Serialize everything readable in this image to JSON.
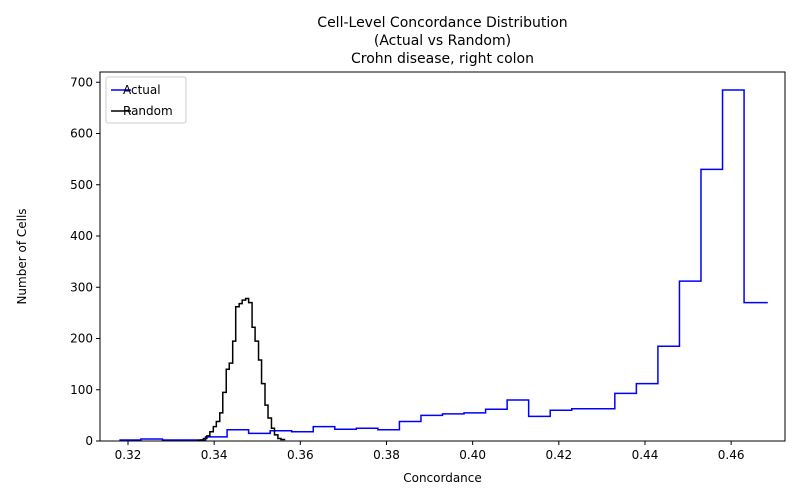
{
  "chart_data": {
    "type": "step",
    "title": [
      "Cell-Level Concordance Distribution",
      "(Actual vs Random)",
      "Crohn disease, right colon"
    ],
    "xlabel": "Concordance",
    "ylabel": "Number of Cells",
    "xlim": [
      0.3135,
      0.4725
    ],
    "ylim": [
      0,
      720
    ],
    "xticks": [
      0.32,
      0.34,
      0.36,
      0.38,
      0.4,
      0.42,
      0.44,
      0.46
    ],
    "xtick_labels": [
      "0.32",
      "0.34",
      "0.36",
      "0.38",
      "0.40",
      "0.42",
      "0.44",
      "0.46"
    ],
    "yticks": [
      0,
      100,
      200,
      300,
      400,
      500,
      600,
      700
    ],
    "ytick_labels": [
      "0",
      "100",
      "200",
      "300",
      "400",
      "500",
      "600",
      "700"
    ],
    "grid": false,
    "legend": "upper-left",
    "series": [
      {
        "name": "Actual",
        "color": "#0000ff",
        "x": [
          0.318,
          0.323,
          0.328,
          0.333,
          0.338,
          0.343,
          0.348,
          0.353,
          0.358,
          0.363,
          0.368,
          0.373,
          0.378,
          0.383,
          0.388,
          0.393,
          0.398,
          0.403,
          0.408,
          0.413,
          0.418,
          0.423,
          0.428,
          0.433,
          0.438,
          0.443,
          0.448,
          0.453,
          0.458,
          0.463,
          0.4685
        ],
        "y": [
          2,
          4,
          2,
          2,
          8,
          22,
          15,
          20,
          18,
          28,
          23,
          25,
          22,
          38,
          50,
          53,
          55,
          62,
          80,
          48,
          60,
          63,
          63,
          93,
          112,
          185,
          312,
          530,
          685,
          270,
          270
        ]
      },
      {
        "name": "Random",
        "color": "#000000",
        "x": [
          0.336,
          0.3368,
          0.3375,
          0.3383,
          0.339,
          0.3398,
          0.3405,
          0.3413,
          0.342,
          0.3428,
          0.3435,
          0.3443,
          0.345,
          0.3458,
          0.3465,
          0.3473,
          0.348,
          0.3488,
          0.3495,
          0.3503,
          0.351,
          0.3518,
          0.3525,
          0.3533,
          0.354,
          0.3548,
          0.3555,
          0.3565
        ],
        "y": [
          1,
          2,
          5,
          10,
          18,
          28,
          38,
          55,
          95,
          140,
          152,
          195,
          262,
          268,
          275,
          278,
          270,
          222,
          195,
          158,
          112,
          70,
          45,
          25,
          12,
          5,
          3,
          3
        ]
      }
    ]
  }
}
